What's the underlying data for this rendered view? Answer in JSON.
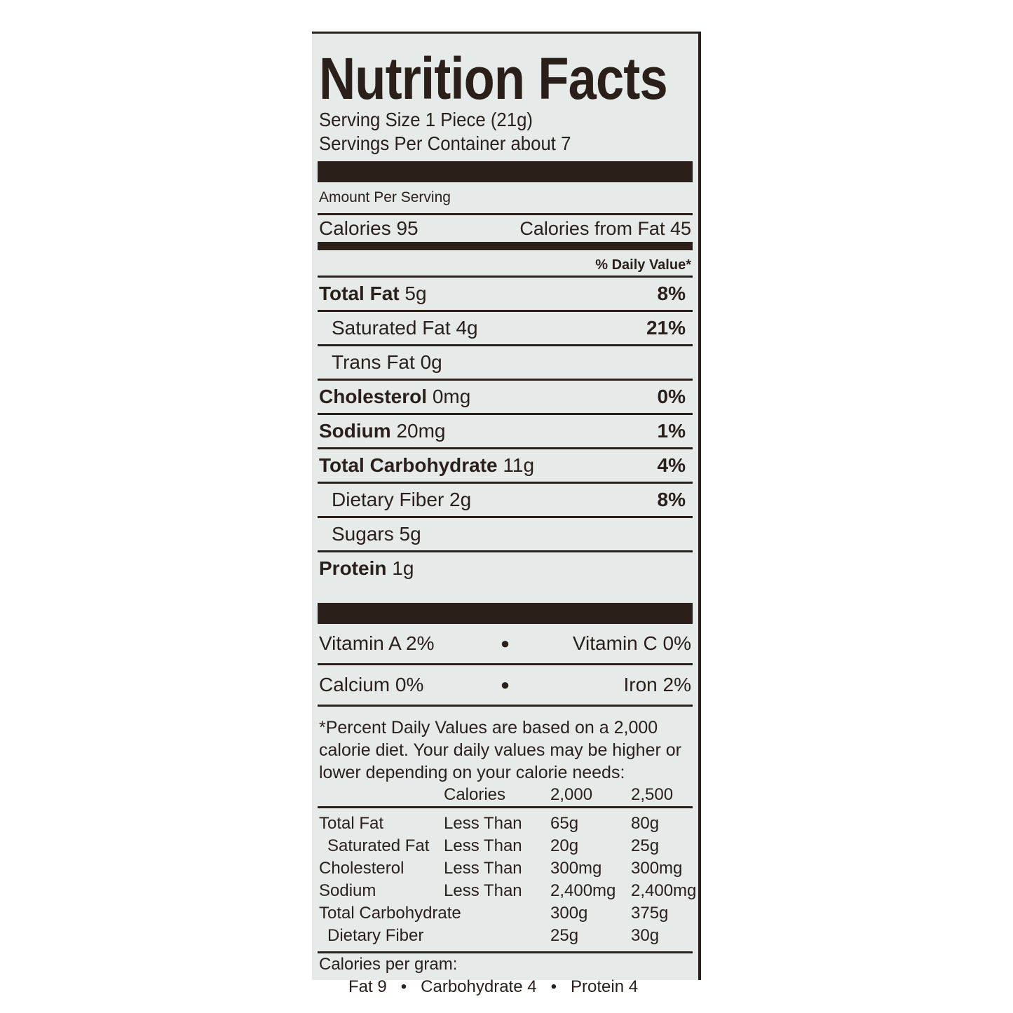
{
  "title": "Nutrition Facts",
  "serving_size": "Serving Size 1 Piece (21g)",
  "servings_per_container": "Servings Per Container about 7",
  "amount_per_serving": "Amount Per Serving",
  "calories": "Calories 95",
  "calories_from_fat": "Calories from Fat 45",
  "daily_value_header": "% Daily Value*",
  "nutrients": [
    {
      "name": "Total Fat",
      "amount": "5g",
      "dv": "8%",
      "bold": true,
      "indent": false
    },
    {
      "name": "Saturated Fat",
      "amount": "4g",
      "dv": "21%",
      "bold": false,
      "indent": true
    },
    {
      "name": "Trans Fat",
      "amount": "0g",
      "dv": "",
      "bold": false,
      "indent": true
    },
    {
      "name": "Cholesterol",
      "amount": "0mg",
      "dv": "0%",
      "bold": true,
      "indent": false
    },
    {
      "name": "Sodium",
      "amount": "20mg",
      "dv": "1%",
      "bold": true,
      "indent": false
    },
    {
      "name": "Total Carbohydrate",
      "amount": "11g",
      "dv": "4%",
      "bold": true,
      "indent": false
    },
    {
      "name": "Dietary Fiber",
      "amount": "2g",
      "dv": "8%",
      "bold": false,
      "indent": true
    },
    {
      "name": "Sugars",
      "amount": "5g",
      "dv": "",
      "bold": false,
      "indent": true
    },
    {
      "name": "Protein",
      "amount": "1g",
      "dv": "",
      "bold": true,
      "indent": false
    }
  ],
  "vitamins": [
    {
      "left": "Vitamin A 2%",
      "right": "Vitamin C 0%"
    },
    {
      "left": "Calcium 0%",
      "right": "Iron 2%"
    }
  ],
  "footnote": "*Percent Daily Values are based on a 2,000 calorie diet. Your daily values may be higher or lower depending on your calorie needs:",
  "reference_table": {
    "header": [
      "",
      "Calories",
      "2,000",
      "2,500"
    ],
    "rows": [
      [
        "Total Fat",
        "Less Than",
        "65g",
        "80g"
      ],
      [
        "Saturated Fat",
        "Less Than",
        "20g",
        "25g"
      ],
      [
        "Cholesterol",
        "Less Than",
        "300mg",
        "300mg"
      ],
      [
        "Sodium",
        "Less Than",
        "2,400mg",
        "2,400mg"
      ],
      [
        "Total Carbohydrate",
        "",
        "300g",
        "375g"
      ],
      [
        "Dietary Fiber",
        "",
        "25g",
        "30g"
      ]
    ]
  },
  "calories_per_gram": {
    "label": "Calories per gram:",
    "fat": "Fat 9",
    "carbohydrate": "Carbohydrate 4",
    "protein": "Protein 4",
    "separator": "•"
  },
  "colors": {
    "ink": "#2b1f1a",
    "label_bg": "#e6ebe9"
  }
}
